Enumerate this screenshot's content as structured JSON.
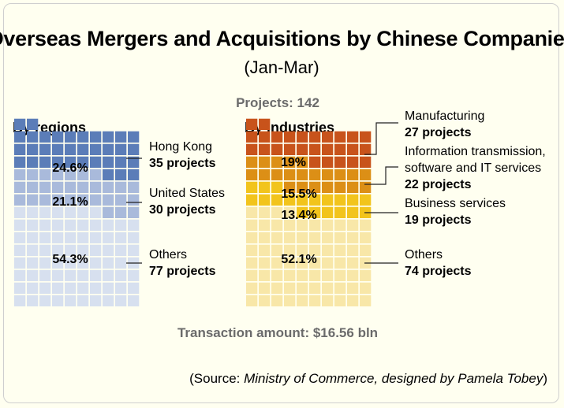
{
  "title": "Overseas Mergers and Acquisitions by Chinese Companies",
  "subtitle": "(Jan-Mar)",
  "projects_total": "Projects: 142",
  "transaction_amount": "Transaction amount: $16.56 bln",
  "source": {
    "prefix": "(Source: ",
    "italic": "Ministry of Commerce, designed by Pamela Tobey",
    "suffix": ")"
  },
  "chart_data": [
    {
      "type": "waffle",
      "title": "By regions",
      "grid": {
        "columns": 10,
        "rows": 15,
        "fill_order": "bottom-up"
      },
      "total_projects": 142,
      "series": [
        {
          "name": "Hong Kong",
          "label": "35 projects",
          "projects": 35,
          "percent": "24.6%",
          "color": "#5b7db8"
        },
        {
          "name": "United States",
          "label": "30 projects",
          "projects": 30,
          "percent": "21.1%",
          "color": "#a9badb"
        },
        {
          "name": "Others",
          "label": "77 projects",
          "projects": 77,
          "percent": "54.3%",
          "color": "#d7e0ef"
        }
      ]
    },
    {
      "type": "waffle",
      "title": "By industries",
      "grid": {
        "columns": 10,
        "rows": 15,
        "fill_order": "bottom-up"
      },
      "total_projects": 142,
      "series": [
        {
          "name": "Manufacturing",
          "label": "27 projects",
          "projects": 27,
          "percent": "19%",
          "color": "#c8531b"
        },
        {
          "name": "Information transmission, software and IT services",
          "name_lines": [
            "Information transmission,",
            "software and IT services"
          ],
          "label": "22 projects",
          "projects": 22,
          "percent": "15.5%",
          "color": "#dc8f16"
        },
        {
          "name": "Business services",
          "label": "19 projects",
          "projects": 19,
          "percent": "13.4%",
          "color": "#f2c41c"
        },
        {
          "name": "Others",
          "label": "74 projects",
          "projects": 74,
          "percent": "52.1%",
          "color": "#f8e7a8"
        }
      ]
    }
  ]
}
